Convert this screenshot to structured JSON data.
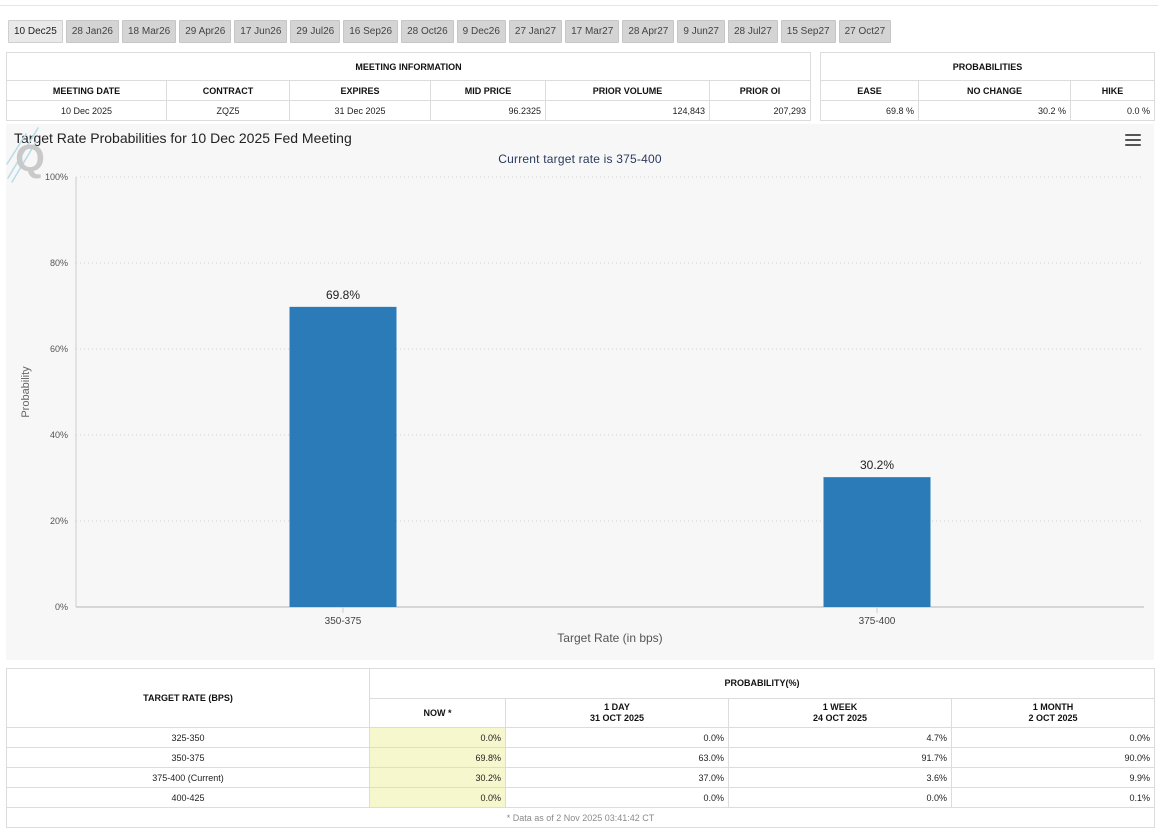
{
  "tabs": [
    "10 Dec25",
    "28 Jan26",
    "18 Mar26",
    "29 Apr26",
    "17 Jun26",
    "29 Jul26",
    "16 Sep26",
    "28 Oct26",
    "9 Dec26",
    "27 Jan27",
    "17 Mar27",
    "28 Apr27",
    "9 Jun27",
    "28 Jul27",
    "15 Sep27",
    "27 Oct27"
  ],
  "meeting_info": {
    "title": "MEETING INFORMATION",
    "headers": [
      "MEETING DATE",
      "CONTRACT",
      "EXPIRES",
      "MID PRICE",
      "PRIOR VOLUME",
      "PRIOR OI"
    ],
    "values": [
      "10 Dec 2025",
      "ZQZ5",
      "31 Dec 2025",
      "96.2325",
      "124,843",
      "207,293"
    ]
  },
  "probabilities": {
    "title": "PROBABILITIES",
    "headers": [
      "EASE",
      "NO CHANGE",
      "HIKE"
    ],
    "values": [
      "69.8 %",
      "30.2 %",
      "0.0 %"
    ]
  },
  "chart": {
    "title": "Target Rate Probabilities for 10 Dec 2025 Fed Meeting",
    "subtitle": "Current target rate is 375-400",
    "logo_letter": "Q",
    "icons": {
      "menu": "hamburger-menu-icon",
      "logo": "q-logo-icon"
    },
    "colors": {
      "bar": "#2b7bb9",
      "grid": "#cfcfcf",
      "background": "#f7f7f7"
    }
  },
  "chart_data": {
    "type": "bar",
    "categories": [
      "350-375",
      "375-400"
    ],
    "values": [
      69.8,
      30.2
    ],
    "data_labels": [
      "69.8%",
      "30.2%"
    ],
    "xlabel": "Target Rate (in bps)",
    "ylabel": "Probability",
    "ylim": [
      0,
      100
    ],
    "yticks": [
      "0%",
      "20%",
      "40%",
      "60%",
      "80%",
      "100%"
    ],
    "grid": true
  },
  "prob_table": {
    "target_header": "TARGET RATE (BPS)",
    "prob_header": "PROBABILITY(%)",
    "columns": [
      {
        "label": "NOW *",
        "date": ""
      },
      {
        "label": "1 DAY",
        "date": "31 OCT 2025"
      },
      {
        "label": "1 WEEK",
        "date": "24 OCT 2025"
      },
      {
        "label": "1 MONTH",
        "date": "2 OCT 2025"
      }
    ],
    "rows": [
      {
        "rate": "325-350",
        "values": [
          "0.0%",
          "0.0%",
          "4.7%",
          "0.0%"
        ]
      },
      {
        "rate": "350-375",
        "values": [
          "69.8%",
          "63.0%",
          "91.7%",
          "90.0%"
        ]
      },
      {
        "rate": "375-400 (Current)",
        "values": [
          "30.2%",
          "37.0%",
          "3.6%",
          "9.9%"
        ]
      },
      {
        "rate": "400-425",
        "values": [
          "0.0%",
          "0.0%",
          "0.0%",
          "0.1%"
        ]
      }
    ],
    "footnote": "* Data as of 2 Nov 2025 03:41:42 CT"
  }
}
